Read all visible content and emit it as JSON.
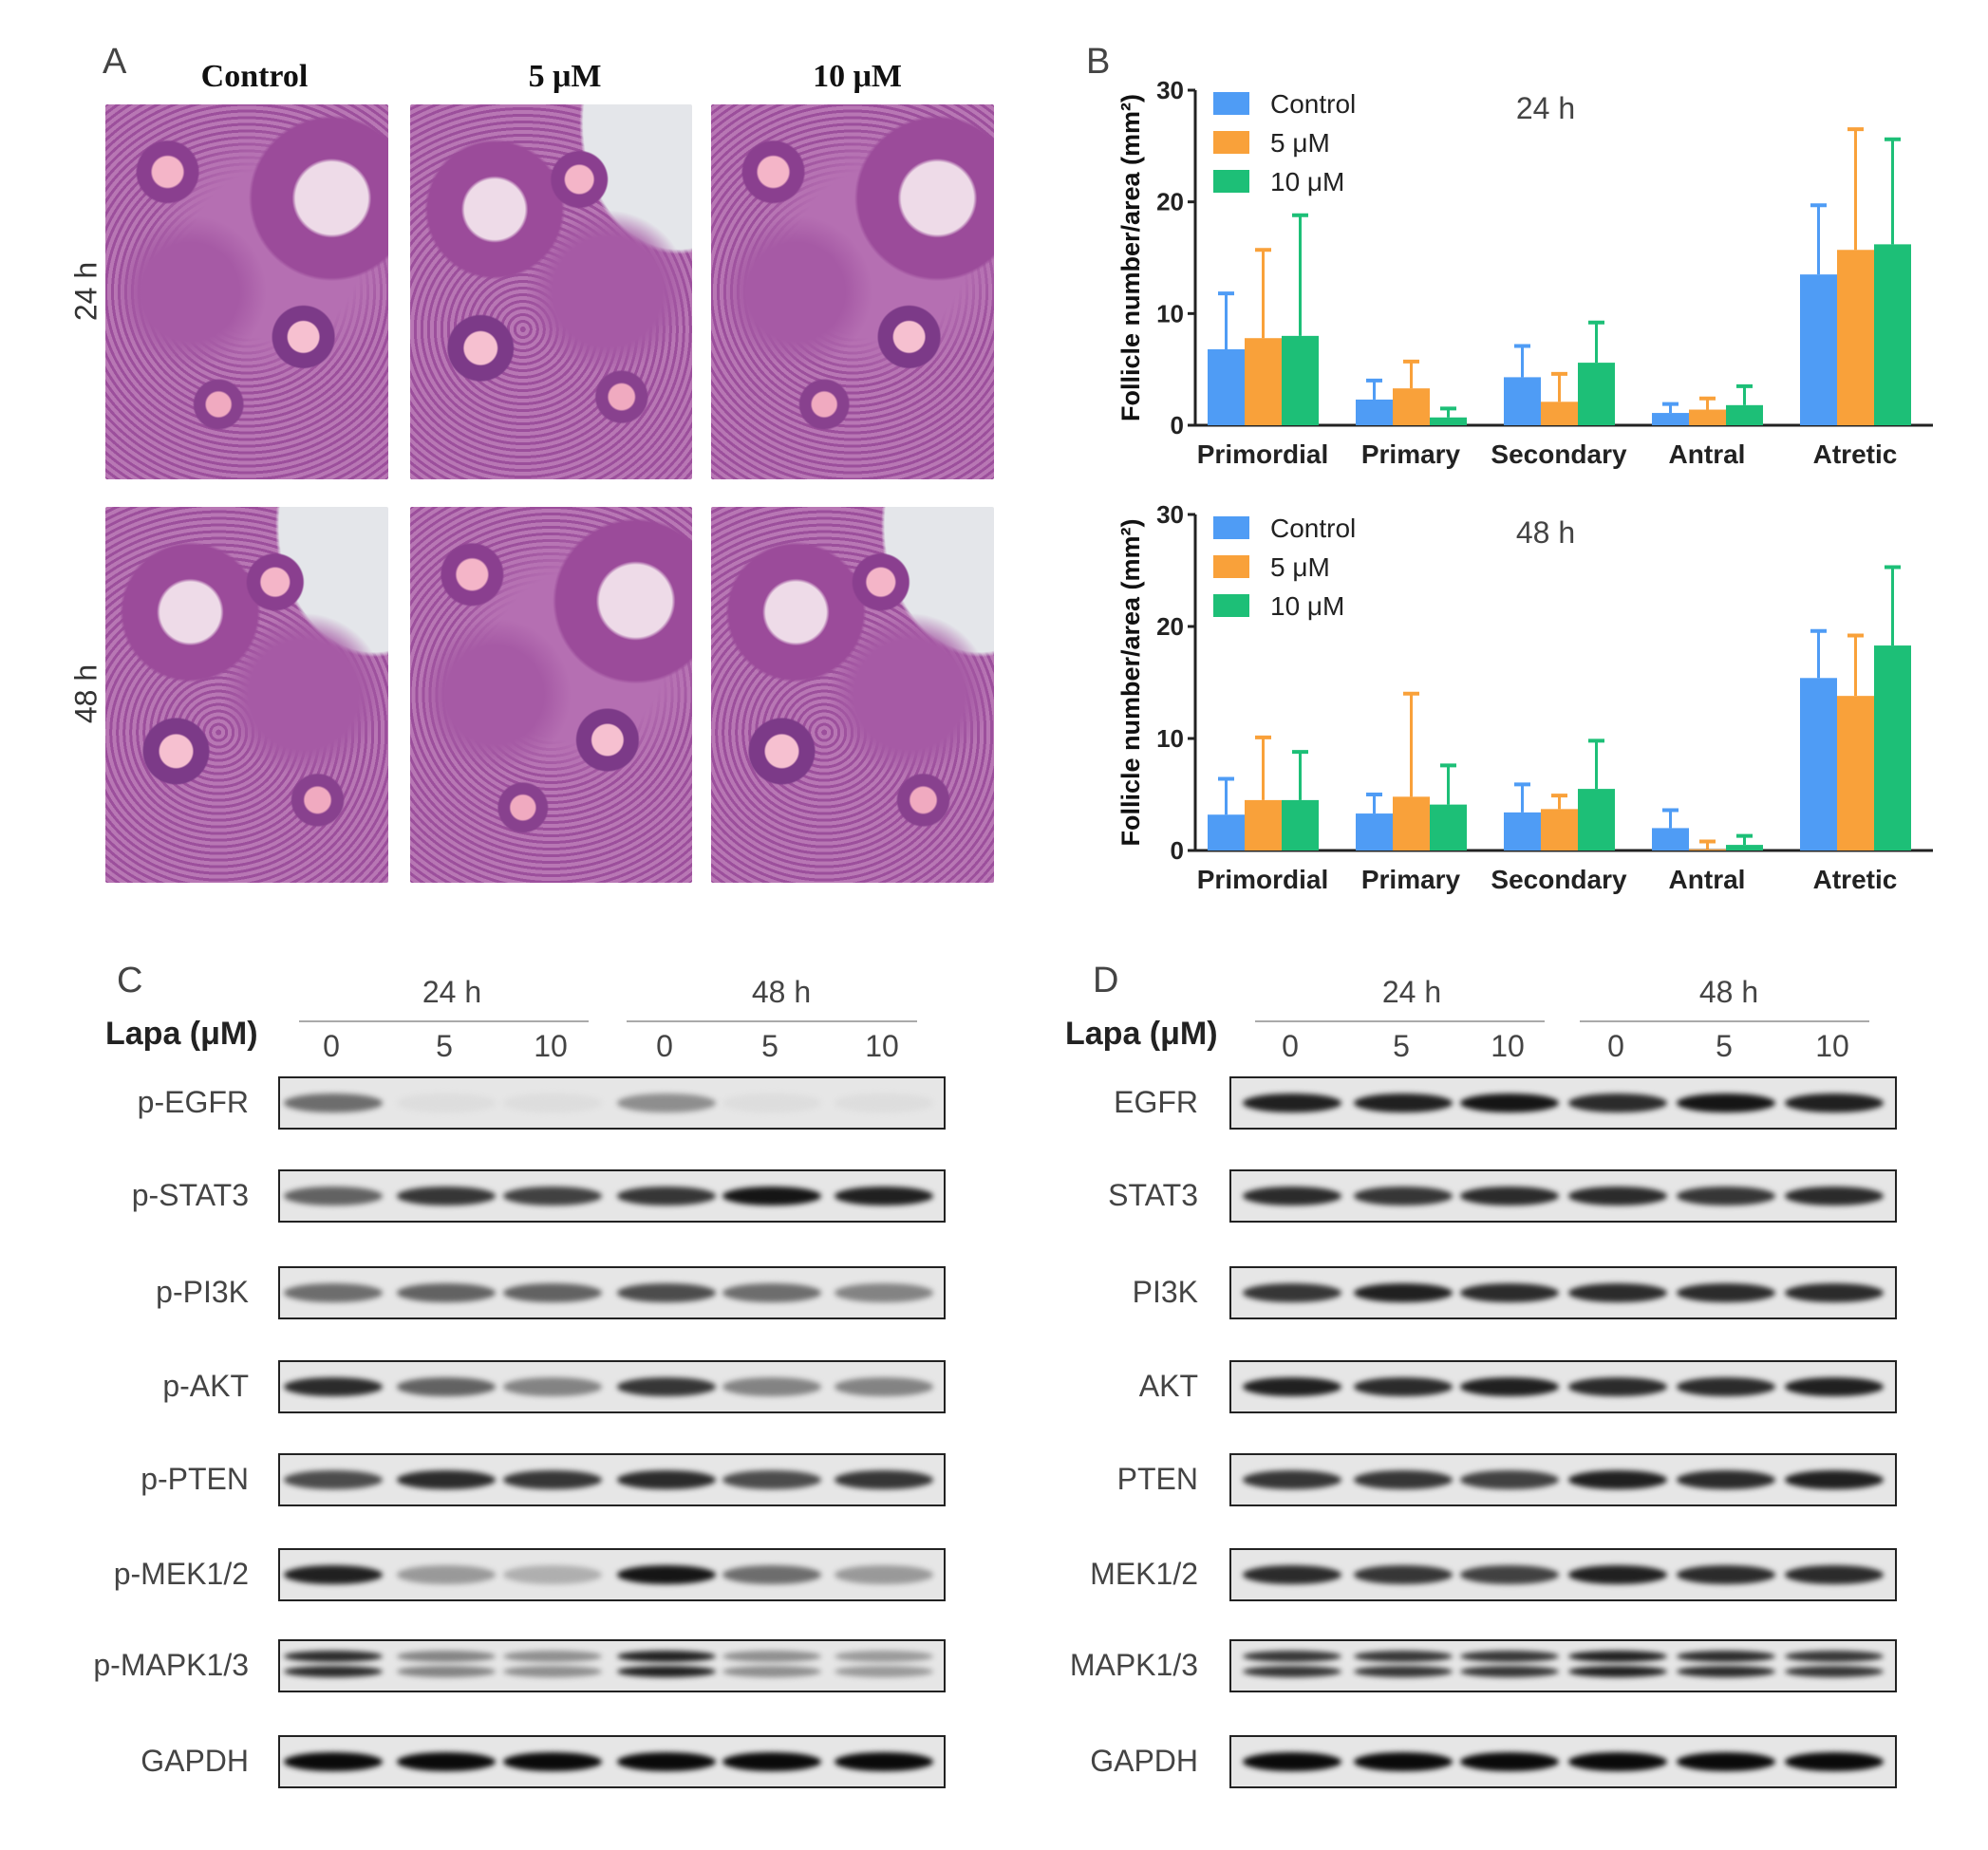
{
  "panel_a": {
    "label": "A",
    "columns": [
      "Control",
      "5 μM",
      "10 μM"
    ],
    "rows": [
      "24 h",
      "48 h"
    ]
  },
  "panel_b": {
    "label": "B"
  },
  "chart_data": [
    {
      "type": "bar",
      "title": "24 h",
      "ylabel": "Follicle number/area (mm²)",
      "ylim": [
        0,
        30
      ],
      "yticks": [
        "0",
        "10",
        "20",
        "30"
      ],
      "categories": [
        "Primordial",
        "Primary",
        "Secondary",
        "Antral",
        "Atretic"
      ],
      "legend_placement": "top-left",
      "series": [
        {
          "name": "Control",
          "color": "#4f9cf5",
          "values": [
            6.8,
            2.3,
            4.3,
            1.1,
            13.5
          ],
          "error": [
            5.0,
            1.7,
            2.8,
            0.8,
            6.2
          ]
        },
        {
          "name": "5 μM",
          "color": "#f9a13a",
          "values": [
            7.8,
            3.3,
            2.1,
            1.4,
            15.7
          ],
          "error": [
            7.9,
            2.4,
            2.5,
            1.0,
            10.8
          ]
        },
        {
          "name": "10 μM",
          "color": "#1dbf77",
          "values": [
            8.0,
            0.7,
            5.6,
            1.8,
            16.2
          ],
          "error": [
            10.8,
            0.8,
            3.6,
            1.7,
            9.4
          ]
        }
      ]
    },
    {
      "type": "bar",
      "title": "48 h",
      "ylabel": "Follicle number/area (mm²)",
      "ylim": [
        0,
        30
      ],
      "yticks": [
        "0",
        "10",
        "20",
        "30"
      ],
      "categories": [
        "Primordial",
        "Primary",
        "Secondary",
        "Antral",
        "Atretic"
      ],
      "legend_placement": "top-left",
      "series": [
        {
          "name": "Control",
          "color": "#4f9cf5",
          "values": [
            3.2,
            3.3,
            3.4,
            2.0,
            15.4
          ],
          "error": [
            3.2,
            1.7,
            2.5,
            1.6,
            4.2
          ]
        },
        {
          "name": "5 μM",
          "color": "#f9a13a",
          "values": [
            4.5,
            4.8,
            3.7,
            0.1,
            13.8
          ],
          "error": [
            5.6,
            9.2,
            1.2,
            0.7,
            5.4
          ]
        },
        {
          "name": "10 μM",
          "color": "#1dbf77",
          "values": [
            4.5,
            4.1,
            5.5,
            0.5,
            18.3
          ],
          "error": [
            4.3,
            3.5,
            4.3,
            0.8,
            7.0
          ]
        }
      ]
    }
  ],
  "panel_c": {
    "label": "C",
    "time_labels": [
      "24 h",
      "48 h"
    ],
    "dose_label": "Lapa (μM)",
    "lanes": [
      "0",
      "5",
      "10",
      "0",
      "5",
      "10"
    ],
    "blots": [
      {
        "name": "p-EGFR",
        "intensity": [
          0.55,
          0.04,
          0.04,
          0.4,
          0.04,
          0.04
        ]
      },
      {
        "name": "p-STAT3",
        "intensity": [
          0.6,
          0.8,
          0.75,
          0.8,
          0.95,
          0.9
        ]
      },
      {
        "name": "p-PI3K",
        "intensity": [
          0.55,
          0.6,
          0.6,
          0.7,
          0.55,
          0.45
        ]
      },
      {
        "name": "p-AKT",
        "intensity": [
          0.85,
          0.6,
          0.45,
          0.8,
          0.45,
          0.45
        ]
      },
      {
        "name": "p-PTEN",
        "intensity": [
          0.7,
          0.85,
          0.8,
          0.85,
          0.7,
          0.8
        ]
      },
      {
        "name": "p-MEK1/2",
        "intensity": [
          0.9,
          0.35,
          0.25,
          0.95,
          0.55,
          0.35
        ]
      },
      {
        "name": "p-MAPK1/3",
        "double": true,
        "intensity": [
          0.85,
          0.45,
          0.4,
          0.9,
          0.4,
          0.35
        ]
      },
      {
        "name": "GAPDH",
        "intensity": [
          1,
          1,
          1,
          1,
          1,
          1
        ]
      }
    ]
  },
  "panel_d": {
    "label": "D",
    "time_labels": [
      "24 h",
      "48 h"
    ],
    "dose_label": "Lapa (μM)",
    "lanes": [
      "0",
      "5",
      "10",
      "0",
      "5",
      "10"
    ],
    "blots": [
      {
        "name": "EGFR",
        "intensity": [
          0.9,
          0.9,
          0.95,
          0.85,
          0.95,
          0.9
        ]
      },
      {
        "name": "STAT3",
        "intensity": [
          0.85,
          0.8,
          0.85,
          0.85,
          0.8,
          0.85
        ]
      },
      {
        "name": "PI3K",
        "intensity": [
          0.8,
          0.9,
          0.85,
          0.85,
          0.85,
          0.85
        ]
      },
      {
        "name": "AKT",
        "intensity": [
          0.9,
          0.85,
          0.9,
          0.85,
          0.85,
          0.9
        ]
      },
      {
        "name": "PTEN",
        "intensity": [
          0.8,
          0.8,
          0.75,
          0.9,
          0.85,
          0.9
        ]
      },
      {
        "name": "MEK1/2",
        "intensity": [
          0.85,
          0.8,
          0.75,
          0.9,
          0.85,
          0.85
        ]
      },
      {
        "name": "MAPK1/3",
        "double": true,
        "intensity": [
          0.8,
          0.8,
          0.8,
          0.9,
          0.85,
          0.8
        ]
      },
      {
        "name": "GAPDH",
        "intensity": [
          1,
          1,
          1,
          1,
          1,
          1
        ]
      }
    ]
  }
}
